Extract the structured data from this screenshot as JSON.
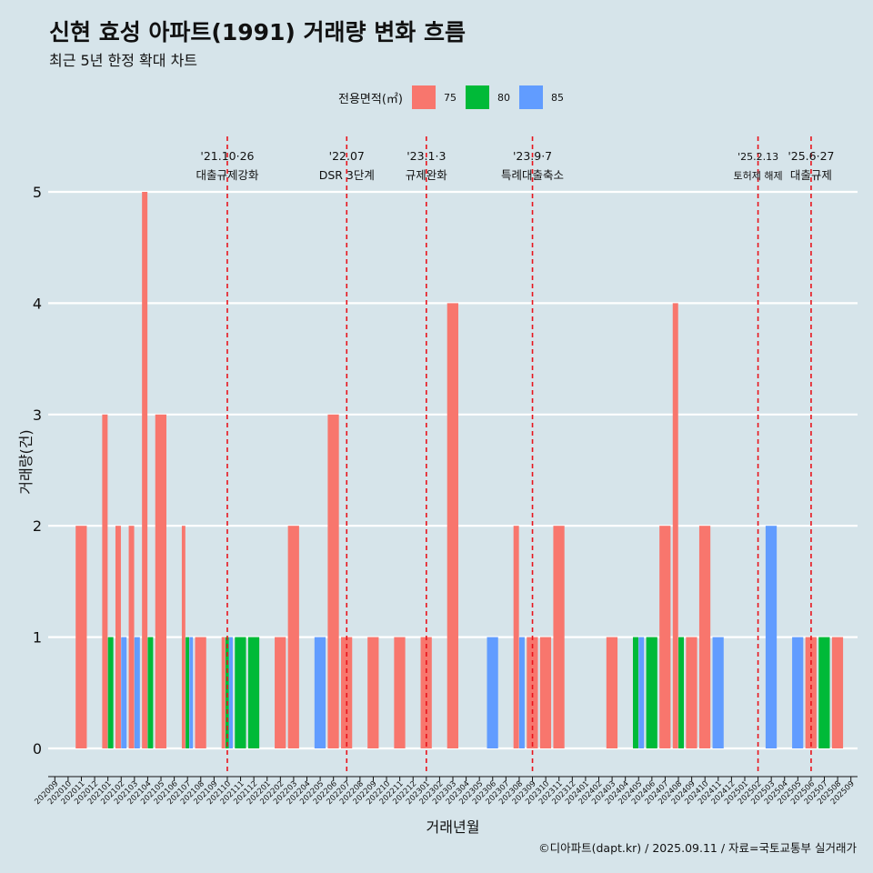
{
  "title": "신현 효성 아파트(1991) 거래량 변화 흐름",
  "subtitle": "최근 5년 한정 확대 차트",
  "credit": "©디아파트(dapt.kr) / 2025.09.11 / 자료=국토교통부 실거래가",
  "chart_data": {
    "type": "bar",
    "xlabel": "거래년월",
    "ylabel": "거래량(건)",
    "ylim": [
      0,
      5
    ],
    "y_ticks": [
      0,
      1,
      2,
      3,
      4,
      5
    ],
    "grid": true,
    "legend": {
      "title": "전용면적(㎡)",
      "position": "top"
    },
    "categories": [
      "202009",
      "202010",
      "202011",
      "202012",
      "202101",
      "202102",
      "202103",
      "202104",
      "202105",
      "202106",
      "202107",
      "202108",
      "202109",
      "202110",
      "202111",
      "202112",
      "202201",
      "202202",
      "202203",
      "202204",
      "202205",
      "202206",
      "202207",
      "202208",
      "202209",
      "202210",
      "202211",
      "202212",
      "202301",
      "202302",
      "202303",
      "202304",
      "202305",
      "202306",
      "202307",
      "202308",
      "202309",
      "202310",
      "202311",
      "202312",
      "202401",
      "202402",
      "202403",
      "202404",
      "202405",
      "202406",
      "202407",
      "202408",
      "202409",
      "202410",
      "202411",
      "202412",
      "202501",
      "202502",
      "202503",
      "202504",
      "202505",
      "202506",
      "202507",
      "202508",
      "202509"
    ],
    "series": [
      {
        "name": "75",
        "color": "#f8766d",
        "values": [
          0,
          0,
          2,
          0,
          3,
          2,
          2,
          5,
          3,
          0,
          2,
          1,
          0,
          1,
          0,
          0,
          0,
          1,
          2,
          0,
          0,
          3,
          1,
          0,
          1,
          0,
          1,
          0,
          1,
          0,
          4,
          0,
          0,
          0,
          0,
          2,
          1,
          1,
          2,
          0,
          0,
          0,
          1,
          0,
          0,
          0,
          2,
          4,
          1,
          2,
          0,
          0,
          0,
          0,
          0,
          0,
          0,
          1,
          0,
          1,
          0
        ]
      },
      {
        "name": "80",
        "color": "#00ba38",
        "values": [
          0,
          0,
          0,
          0,
          1,
          0,
          0,
          1,
          0,
          0,
          1,
          0,
          0,
          1,
          1,
          1,
          0,
          0,
          0,
          0,
          0,
          0,
          0,
          0,
          0,
          0,
          0,
          0,
          0,
          0,
          0,
          0,
          0,
          0,
          0,
          0,
          0,
          0,
          0,
          0,
          0,
          0,
          0,
          0,
          1,
          1,
          0,
          1,
          0,
          0,
          0,
          0,
          0,
          0,
          0,
          0,
          0,
          0,
          1,
          0,
          0
        ]
      },
      {
        "name": "85",
        "color": "#619cff",
        "values": [
          0,
          0,
          0,
          0,
          0,
          1,
          1,
          0,
          0,
          0,
          1,
          0,
          0,
          1,
          0,
          0,
          0,
          0,
          0,
          0,
          1,
          0,
          0,
          0,
          0,
          0,
          0,
          0,
          0,
          0,
          0,
          0,
          0,
          1,
          0,
          1,
          0,
          0,
          0,
          0,
          0,
          0,
          0,
          0,
          1,
          0,
          0,
          0,
          0,
          0,
          1,
          0,
          0,
          0,
          2,
          0,
          1,
          0,
          0,
          0,
          0
        ]
      }
    ],
    "annotations": [
      {
        "at": "202110",
        "lines": [
          "'21.10·26",
          "대출규제강화"
        ]
      },
      {
        "at": "202207",
        "lines": [
          "'22.07",
          "DSR 3단계"
        ]
      },
      {
        "at": "202301",
        "lines": [
          "'23.1·3",
          "규제완화"
        ]
      },
      {
        "at": "202309",
        "lines": [
          "'23.9·7",
          "특례대출축소"
        ]
      },
      {
        "at": "202502",
        "lines": [
          "'25.2.13",
          "토허제 해제"
        ]
      },
      {
        "at": "202506",
        "lines": [
          "'25.6·27",
          "대출규제"
        ]
      }
    ]
  }
}
